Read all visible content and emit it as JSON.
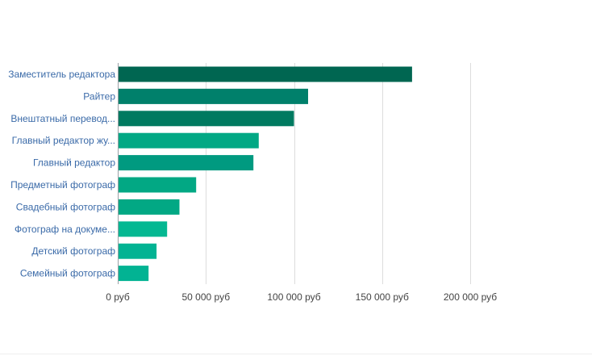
{
  "chart_data": {
    "type": "bar",
    "orientation": "horizontal",
    "categories": [
      "Заместитель редактора",
      "Райтер",
      "Внештатный перевод...",
      "Главный редактор жу...",
      "Главный редактор",
      "Предметный фотограф",
      "Свадебный фотограф",
      "Фотограф на докуме...",
      "Детский фотограф",
      "Семейный фотограф"
    ],
    "values": [
      167000,
      108000,
      100000,
      80000,
      77000,
      44500,
      35000,
      28000,
      22000,
      17500
    ],
    "bar_colors": [
      "#006651",
      "#00806b",
      "#007a60",
      "#02a884",
      "#009a80",
      "#02a884",
      "#02a884",
      "#04b892",
      "#02b393",
      "#02b393"
    ],
    "xlim": [
      0,
      200000
    ],
    "x_ticks": [
      0,
      50000,
      100000,
      150000,
      200000
    ],
    "x_tick_labels": [
      "0 руб",
      "50 000 руб",
      "100 000 руб",
      "150 000 руб",
      "200 000 руб"
    ],
    "title": "",
    "xlabel": "",
    "ylabel": "",
    "grid": true,
    "legend": "none"
  }
}
